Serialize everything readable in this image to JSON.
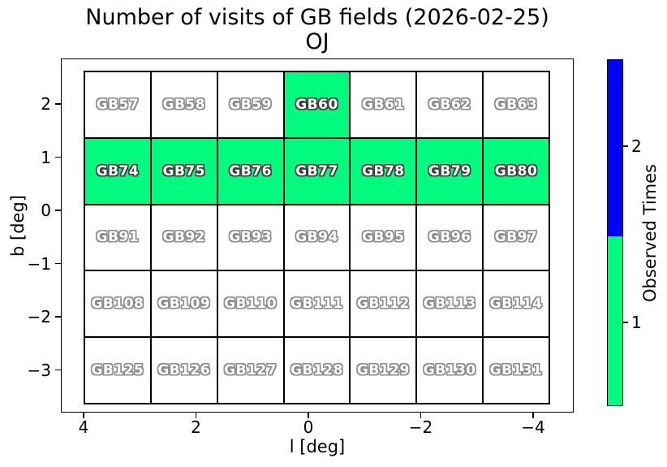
{
  "title": "Number of visits of GB fields (2026-02-25)",
  "subtitle": "OJ",
  "axes": {
    "xlabel": "l [deg]",
    "ylabel": "b [deg]",
    "x_ticks": [
      "4",
      "2",
      "0",
      "−2",
      "−4"
    ],
    "y_ticks": [
      "2",
      "1",
      "0",
      "−1",
      "−2",
      "−3"
    ]
  },
  "colorbar": {
    "label": "Observed Times",
    "tick_labels": [
      "2",
      "1"
    ],
    "value_colors": {
      "1": "#00FB7F",
      "2": "#0202FA"
    },
    "unobserved_color": "#FFFFFF"
  },
  "chart_data": {
    "type": "heatmap",
    "title": "Number of visits of GB fields (2026-02-25)",
    "subtitle": "OJ",
    "xlabel": "l [deg]",
    "ylabel": "b [deg]",
    "x_tick_labels": [
      4,
      2,
      0,
      -2,
      -4
    ],
    "x_axis_reversed": true,
    "y_tick_labels": [
      2,
      1,
      0,
      -1,
      -2,
      -3
    ],
    "xlim": [
      4.1,
      -4.6
    ],
    "ylim": [
      -3.5,
      2.65
    ],
    "colorbar": {
      "label": "Observed Times",
      "ticks": [
        1,
        2
      ],
      "range": [
        0.5,
        2.5
      ],
      "value_colors": {
        "1": "#00FB7F",
        "2": "#0202FA"
      }
    },
    "rows": [
      {
        "fields": [
          "GB57",
          "GB58",
          "GB59",
          "GB60",
          "GB61",
          "GB62",
          "GB63"
        ],
        "visits": [
          0,
          0,
          0,
          1,
          0,
          0,
          0
        ]
      },
      {
        "fields": [
          "GB74",
          "GB75",
          "GB76",
          "GB77",
          "GB78",
          "GB79",
          "GB80"
        ],
        "visits": [
          1,
          1,
          1,
          1,
          1,
          1,
          1
        ]
      },
      {
        "fields": [
          "GB91",
          "GB92",
          "GB93",
          "GB94",
          "GB95",
          "GB96",
          "GB97"
        ],
        "visits": [
          0,
          0,
          0,
          0,
          0,
          0,
          0
        ]
      },
      {
        "fields": [
          "GB108",
          "GB109",
          "GB110",
          "GB111",
          "GB112",
          "GB113",
          "GB114"
        ],
        "visits": [
          0,
          0,
          0,
          0,
          0,
          0,
          0
        ]
      },
      {
        "fields": [
          "GB125",
          "GB126",
          "GB127",
          "GB128",
          "GB129",
          "GB130",
          "GB131"
        ],
        "visits": [
          0,
          0,
          0,
          0,
          0,
          0,
          0
        ]
      }
    ]
  }
}
